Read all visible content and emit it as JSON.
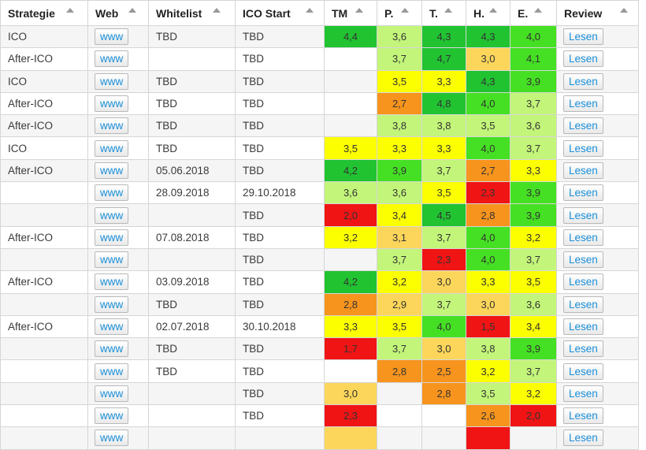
{
  "colors": {
    "dark_green": "#21c331",
    "green": "#45e023",
    "light_green": "#c3f57a",
    "yellow": "#fcff00",
    "light_orange": "#fcd65a",
    "orange": "#f7941d",
    "red": "#f01414"
  },
  "header": [
    {
      "label": "Strategie"
    },
    {
      "label": "Web"
    },
    {
      "label": "Whitelist"
    },
    {
      "label": "ICO Start"
    },
    {
      "label": "TM"
    },
    {
      "label": "P."
    },
    {
      "label": "T."
    },
    {
      "label": "H."
    },
    {
      "label": "E."
    },
    {
      "label": "Review"
    }
  ],
  "rows": [
    {
      "strategie": "ICO",
      "web": "www",
      "whitelist": "TBD",
      "ico_start": "TBD",
      "scores": [
        {
          "v": "4,4",
          "c": "#21c331"
        },
        {
          "v": "3,6",
          "c": "#c3f57a"
        },
        {
          "v": "4,3",
          "c": "#21c331"
        },
        {
          "v": "4,3",
          "c": "#21c331"
        },
        {
          "v": "4,0",
          "c": "#45e023"
        }
      ],
      "review": "Lesen"
    },
    {
      "strategie": "After-ICO",
      "web": "www",
      "whitelist": "",
      "ico_start": "TBD",
      "scores": [
        {
          "v": "",
          "c": ""
        },
        {
          "v": "3,7",
          "c": "#c3f57a"
        },
        {
          "v": "4,7",
          "c": "#21c331"
        },
        {
          "v": "3,0",
          "c": "#fcd65a"
        },
        {
          "v": "4,1",
          "c": "#45e023"
        }
      ],
      "review": "Lesen"
    },
    {
      "strategie": "ICO",
      "web": "www",
      "whitelist": "TBD",
      "ico_start": "TBD",
      "scores": [
        {
          "v": "",
          "c": ""
        },
        {
          "v": "3,5",
          "c": "#fcff00"
        },
        {
          "v": "3,3",
          "c": "#fcff00"
        },
        {
          "v": "4,3",
          "c": "#21c331"
        },
        {
          "v": "3,9",
          "c": "#45e023"
        }
      ],
      "review": "Lesen"
    },
    {
      "strategie": "After-ICO",
      "web": "www",
      "whitelist": "TBD",
      "ico_start": "TBD",
      "scores": [
        {
          "v": "",
          "c": ""
        },
        {
          "v": "2,7",
          "c": "#f7941d"
        },
        {
          "v": "4,8",
          "c": "#21c331"
        },
        {
          "v": "4,0",
          "c": "#45e023"
        },
        {
          "v": "3,7",
          "c": "#c3f57a"
        }
      ],
      "review": "Lesen"
    },
    {
      "strategie": "After-ICO",
      "web": "www",
      "whitelist": "TBD",
      "ico_start": "TBD",
      "scores": [
        {
          "v": "",
          "c": ""
        },
        {
          "v": "3,8",
          "c": "#c3f57a"
        },
        {
          "v": "3,8",
          "c": "#c3f57a"
        },
        {
          "v": "3,5",
          "c": "#c3f57a"
        },
        {
          "v": "3,6",
          "c": "#c3f57a"
        }
      ],
      "review": "Lesen"
    },
    {
      "strategie": "ICO",
      "web": "www",
      "whitelist": "TBD",
      "ico_start": "TBD",
      "scores": [
        {
          "v": "3,5",
          "c": "#fcff00"
        },
        {
          "v": "3,3",
          "c": "#fcff00"
        },
        {
          "v": "3,3",
          "c": "#fcff00"
        },
        {
          "v": "4,0",
          "c": "#45e023"
        },
        {
          "v": "3,7",
          "c": "#c3f57a"
        }
      ],
      "review": "Lesen"
    },
    {
      "strategie": "After-ICO",
      "web": "www",
      "whitelist": "05.06.2018",
      "ico_start": "TBD",
      "scores": [
        {
          "v": "4,2",
          "c": "#21c331"
        },
        {
          "v": "3,9",
          "c": "#45e023"
        },
        {
          "v": "3,7",
          "c": "#c3f57a"
        },
        {
          "v": "2,7",
          "c": "#f7941d"
        },
        {
          "v": "3,3",
          "c": "#fcff00"
        }
      ],
      "review": "Lesen"
    },
    {
      "strategie": "",
      "web": "www",
      "whitelist": "28.09.2018",
      "ico_start": "29.10.2018",
      "scores": [
        {
          "v": "3,6",
          "c": "#c3f57a"
        },
        {
          "v": "3,6",
          "c": "#c3f57a"
        },
        {
          "v": "3,5",
          "c": "#fcff00"
        },
        {
          "v": "2,3",
          "c": "#f01414"
        },
        {
          "v": "3,9",
          "c": "#45e023"
        }
      ],
      "review": "Lesen"
    },
    {
      "strategie": "",
      "web": "www",
      "whitelist": "",
      "ico_start": "TBD",
      "scores": [
        {
          "v": "2,0",
          "c": "#f01414"
        },
        {
          "v": "3,4",
          "c": "#fcff00"
        },
        {
          "v": "4,5",
          "c": "#21c331"
        },
        {
          "v": "2,8",
          "c": "#f7941d"
        },
        {
          "v": "3,9",
          "c": "#45e023"
        }
      ],
      "review": "Lesen"
    },
    {
      "strategie": "After-ICO",
      "web": "www",
      "whitelist": "07.08.2018",
      "ico_start": "TBD",
      "scores": [
        {
          "v": "3,2",
          "c": "#fcff00"
        },
        {
          "v": "3,1",
          "c": "#fcd65a"
        },
        {
          "v": "3,7",
          "c": "#c3f57a"
        },
        {
          "v": "4,0",
          "c": "#45e023"
        },
        {
          "v": "3,2",
          "c": "#fcff00"
        }
      ],
      "review": "Lesen"
    },
    {
      "strategie": "",
      "web": "www",
      "whitelist": "",
      "ico_start": "TBD",
      "scores": [
        {
          "v": "",
          "c": ""
        },
        {
          "v": "3,7",
          "c": "#c3f57a"
        },
        {
          "v": "2,3",
          "c": "#f01414"
        },
        {
          "v": "4,0",
          "c": "#45e023"
        },
        {
          "v": "3,7",
          "c": "#c3f57a"
        }
      ],
      "review": "Lesen"
    },
    {
      "strategie": "After-ICO",
      "web": "www",
      "whitelist": "03.09.2018",
      "ico_start": "TBD",
      "scores": [
        {
          "v": "4,2",
          "c": "#21c331"
        },
        {
          "v": "3,2",
          "c": "#fcff00"
        },
        {
          "v": "3,0",
          "c": "#fcd65a"
        },
        {
          "v": "3,3",
          "c": "#fcff00"
        },
        {
          "v": "3,5",
          "c": "#fcff00"
        }
      ],
      "review": "Lesen"
    },
    {
      "strategie": "",
      "web": "www",
      "whitelist": "TBD",
      "ico_start": "TBD",
      "scores": [
        {
          "v": "2,8",
          "c": "#f7941d"
        },
        {
          "v": "2,9",
          "c": "#fcd65a"
        },
        {
          "v": "3,7",
          "c": "#c3f57a"
        },
        {
          "v": "3,0",
          "c": "#fcd65a"
        },
        {
          "v": "3,6",
          "c": "#c3f57a"
        }
      ],
      "review": "Lesen"
    },
    {
      "strategie": "After-ICO",
      "web": "www",
      "whitelist": "02.07.2018",
      "ico_start": "30.10.2018",
      "scores": [
        {
          "v": "3,3",
          "c": "#fcff00"
        },
        {
          "v": "3,5",
          "c": "#fcff00"
        },
        {
          "v": "4,0",
          "c": "#45e023"
        },
        {
          "v": "1,5",
          "c": "#f01414"
        },
        {
          "v": "3,4",
          "c": "#fcff00"
        }
      ],
      "review": "Lesen"
    },
    {
      "strategie": "",
      "web": "www",
      "whitelist": "TBD",
      "ico_start": "TBD",
      "scores": [
        {
          "v": "1,7",
          "c": "#f01414"
        },
        {
          "v": "3,7",
          "c": "#c3f57a"
        },
        {
          "v": "3,0",
          "c": "#fcd65a"
        },
        {
          "v": "3,8",
          "c": "#c3f57a"
        },
        {
          "v": "3,9",
          "c": "#45e023"
        }
      ],
      "review": "Lesen"
    },
    {
      "strategie": "",
      "web": "www",
      "whitelist": "TBD",
      "ico_start": "TBD",
      "scores": [
        {
          "v": "",
          "c": ""
        },
        {
          "v": "2,8",
          "c": "#f7941d"
        },
        {
          "v": "2,5",
          "c": "#f7941d"
        },
        {
          "v": "3,2",
          "c": "#fcff00"
        },
        {
          "v": "3,7",
          "c": "#c3f57a"
        }
      ],
      "review": "Lesen"
    },
    {
      "strategie": "",
      "web": "www",
      "whitelist": "",
      "ico_start": "TBD",
      "scores": [
        {
          "v": "3,0",
          "c": "#fcd65a"
        },
        {
          "v": "",
          "c": ""
        },
        {
          "v": "2,8",
          "c": "#f7941d"
        },
        {
          "v": "3,5",
          "c": "#c3f57a"
        },
        {
          "v": "3,2",
          "c": "#fcff00"
        }
      ],
      "review": "Lesen"
    },
    {
      "strategie": "",
      "web": "www",
      "whitelist": "",
      "ico_start": "TBD",
      "scores": [
        {
          "v": "2,3",
          "c": "#f01414"
        },
        {
          "v": "",
          "c": ""
        },
        {
          "v": "",
          "c": ""
        },
        {
          "v": "2,6",
          "c": "#f7941d"
        },
        {
          "v": "2,0",
          "c": "#f01414"
        }
      ],
      "review": "Lesen"
    },
    {
      "strategie": "",
      "web": "www",
      "whitelist": "",
      "ico_start": "",
      "scores": [
        {
          "v": "",
          "c": "#fcd65a"
        },
        {
          "v": "",
          "c": ""
        },
        {
          "v": "",
          "c": ""
        },
        {
          "v": "",
          "c": "#f01414"
        },
        {
          "v": "",
          "c": ""
        }
      ],
      "review": "Lesen"
    }
  ]
}
